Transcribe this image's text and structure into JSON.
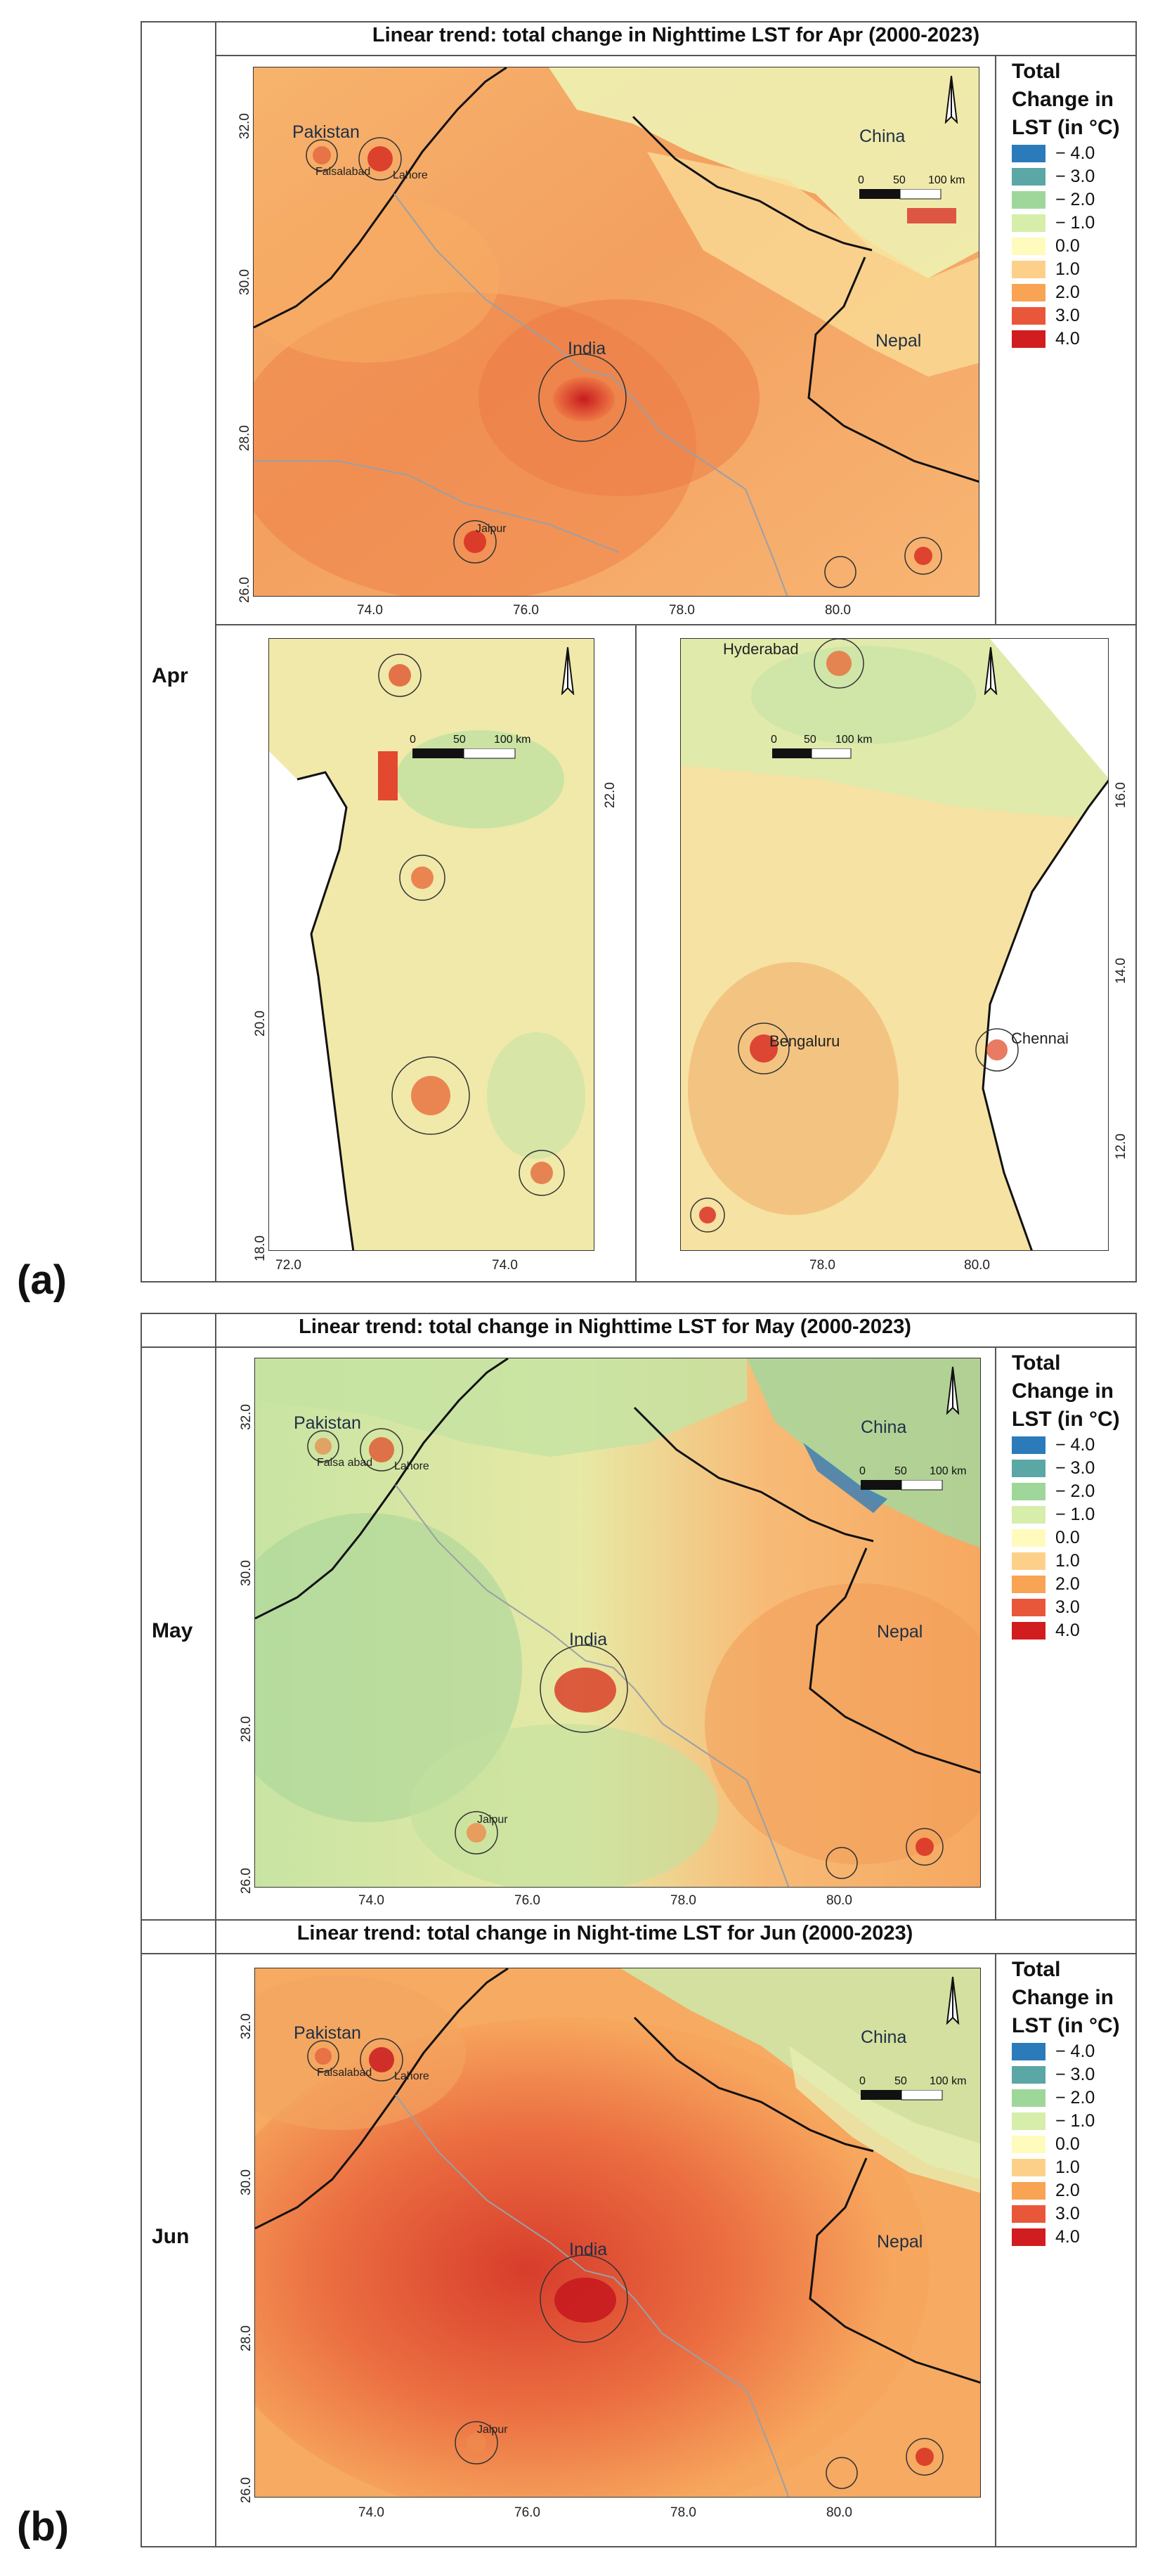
{
  "panel_labels": {
    "a": "(a)",
    "b": "(b)"
  },
  "months": {
    "apr": "Apr",
    "may": "May",
    "jun": "Jun"
  },
  "titles": {
    "apr": "Linear trend: total change in Nighttime LST for Apr (2000-2023)",
    "may": "Linear trend: total change in Nighttime LST for May (2000-2023)",
    "jun": "Linear trend: total change in Night-time LST for Jun (2000-2023)"
  },
  "legend": {
    "title_lines": [
      "Total",
      "Change in",
      "LST (in °C)"
    ],
    "items": [
      {
        "label": "− 4.0",
        "color": "#2b7bba"
      },
      {
        "label": "− 3.0",
        "color": "#5aa7a6"
      },
      {
        "label": "− 2.0",
        "color": "#9fd79a"
      },
      {
        "label": "− 1.0",
        "color": "#d6eeaa"
      },
      {
        "label": "0.0",
        "color": "#fefbbd"
      },
      {
        "label": "1.0",
        "color": "#fdd08a"
      },
      {
        "label": "2.0",
        "color": "#f9a354"
      },
      {
        "label": "3.0",
        "color": "#e9573b"
      },
      {
        "label": "4.0",
        "color": "#d11d1f"
      }
    ]
  },
  "north_map": {
    "x_ticks": [
      "74.0",
      "76.0",
      "78.0",
      "80.0"
    ],
    "y_ticks": [
      "32.0",
      "30.0",
      "28.0",
      "26.0"
    ],
    "countries": {
      "pakistan": "Pakistan",
      "china": "China",
      "india": "India",
      "nepal": "Nepal"
    },
    "cities": {
      "faisalabad_apr": "Faisalabad",
      "faisalabad_may": "Faisa abad",
      "lahore": "Lahore",
      "jaipur": "Jaipur"
    }
  },
  "west_map": {
    "x_ticks": [
      "72.0",
      "74.0"
    ],
    "y_ticks": [
      "22.0",
      "20.0",
      "18.0"
    ]
  },
  "south_map": {
    "x_ticks": [
      "78.0",
      "80.0"
    ],
    "y_ticks": [
      "16.0",
      "14.0",
      "12.0"
    ],
    "cities": {
      "hyderabad": "Hyderabad",
      "bengaluru": "Bengaluru",
      "chennai": "Chennai"
    }
  },
  "scale": {
    "zero": "0",
    "mid": "50",
    "end": "100 km"
  }
}
